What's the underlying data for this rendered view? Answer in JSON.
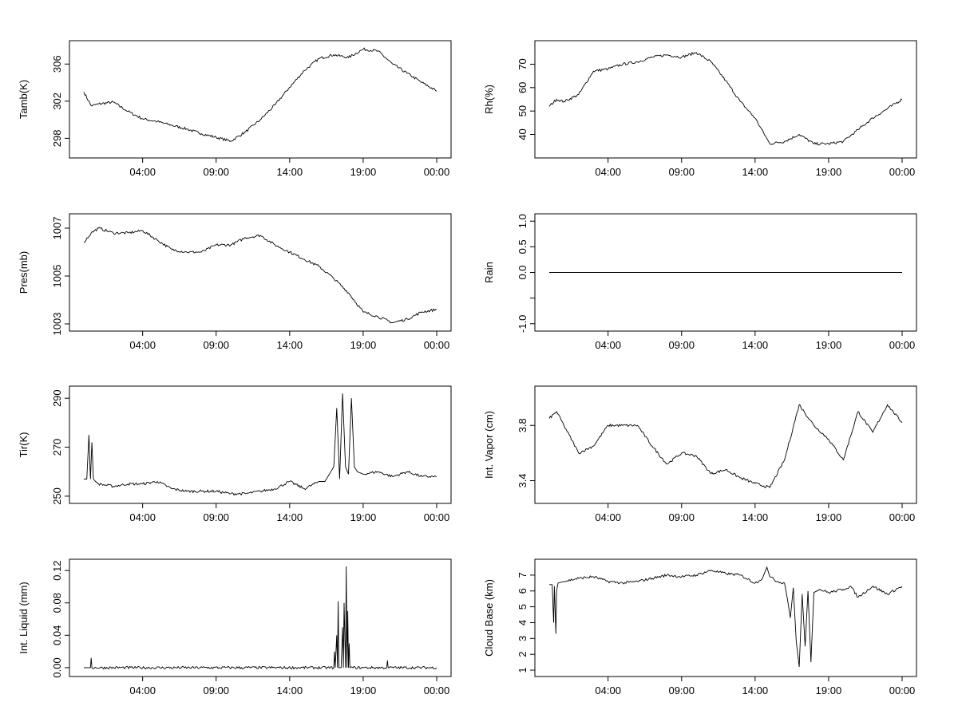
{
  "chart_data": [
    {
      "type": "line",
      "ylabel": "Tamb(K)",
      "xlim": [
        0,
        24
      ],
      "ylim": [
        296.4,
        308.0
      ],
      "x_tick_labels": [
        "04:00",
        "09:00",
        "14:00",
        "19:00",
        "00:00"
      ],
      "y_ticks": [
        298,
        302,
        306
      ],
      "series": [
        {
          "x": [
            0,
            0.5,
            1,
            2,
            3,
            4,
            5,
            6,
            7,
            8,
            9,
            10,
            11,
            12,
            13,
            14,
            15,
            16,
            17,
            18,
            19,
            20,
            21,
            22,
            23,
            24
          ],
          "values": [
            303.0,
            301.5,
            301.7,
            301.9,
            300.9,
            300.1,
            299.8,
            299.4,
            299.0,
            298.5,
            298.1,
            297.7,
            298.7,
            300.0,
            301.6,
            303.5,
            305.3,
            306.6,
            307.0,
            306.7,
            307.6,
            307.4,
            306.0,
            305.0,
            304.0,
            303.1
          ]
        }
      ]
    },
    {
      "type": "line",
      "ylabel": "Rh(%)",
      "xlim": [
        0,
        24
      ],
      "ylim": [
        32,
        78
      ],
      "x_tick_labels": [
        "04:00",
        "09:00",
        "14:00",
        "19:00",
        "00:00"
      ],
      "y_ticks": [
        40,
        50,
        60,
        70
      ],
      "series": [
        {
          "x": [
            0,
            0.5,
            1,
            2,
            3,
            4,
            5,
            6,
            7,
            8,
            9,
            10,
            11,
            12,
            13,
            14,
            15,
            16,
            17,
            18,
            19,
            20,
            21,
            22,
            23,
            24
          ],
          "values": [
            52,
            55,
            54,
            57,
            67,
            68,
            70,
            71,
            73,
            74,
            73,
            75,
            71,
            63,
            54,
            47,
            36,
            37,
            40,
            36,
            36,
            37,
            42,
            47,
            51,
            55
          ]
        }
      ]
    },
    {
      "type": "line",
      "ylabel": "Pres(mb)",
      "xlim": [
        0,
        24
      ],
      "ylim": [
        1002.9,
        1007.4
      ],
      "x_tick_labels": [
        "04:00",
        "09:00",
        "14:00",
        "19:00",
        "00:00"
      ],
      "y_ticks": [
        1003,
        1005,
        1007
      ],
      "series": [
        {
          "x": [
            0,
            0.5,
            1,
            2,
            3,
            4,
            5,
            6,
            7,
            8,
            9,
            10,
            11,
            12,
            13,
            14,
            15,
            16,
            17,
            18,
            19,
            20,
            21,
            22,
            23,
            24
          ],
          "values": [
            1006.4,
            1006.8,
            1007.0,
            1006.8,
            1006.8,
            1006.9,
            1006.5,
            1006.1,
            1006.0,
            1006.0,
            1006.3,
            1006.3,
            1006.6,
            1006.7,
            1006.3,
            1006.0,
            1005.7,
            1005.4,
            1004.9,
            1004.3,
            1003.5,
            1003.3,
            1003.05,
            1003.2,
            1003.5,
            1003.6
          ]
        }
      ]
    },
    {
      "type": "line",
      "ylabel": "Rain",
      "xlim": [
        0,
        24
      ],
      "ylim": [
        -1.05,
        1.05
      ],
      "x_tick_labels": [
        "04:00",
        "09:00",
        "14:00",
        "19:00",
        "00:00"
      ],
      "y_ticks": [
        -1.0,
        -0.5,
        0.0,
        0.5,
        1.0
      ],
      "y_tick_labels": [
        "-1.0",
        "",
        "0.0",
        "0.5",
        "1.0"
      ],
      "series": [
        {
          "x": [
            0,
            24
          ],
          "values": [
            0.0,
            0.0
          ]
        }
      ]
    },
    {
      "type": "line",
      "ylabel": "Tir(K)",
      "xlim": [
        0,
        24
      ],
      "ylim": [
        249,
        293
      ],
      "x_tick_labels": [
        "04:00",
        "09:00",
        "14:00",
        "19:00",
        "00:00"
      ],
      "y_ticks": [
        250,
        270,
        290
      ],
      "series": [
        {
          "x": [
            0,
            0.2,
            0.35,
            0.45,
            0.55,
            0.65,
            0.8,
            1,
            2,
            3,
            4,
            5,
            6,
            7,
            8,
            9,
            10,
            11,
            12,
            13,
            14,
            15,
            16,
            16.4,
            16.8,
            17.0,
            17.2,
            17.4,
            17.6,
            17.8,
            18.0,
            18.2,
            18.4,
            18.6,
            19,
            20,
            21,
            22,
            23,
            24
          ],
          "values": [
            257,
            257,
            275,
            257,
            272,
            257,
            256,
            255,
            254,
            255,
            255,
            256,
            253,
            252,
            252,
            252,
            251,
            251,
            252,
            253,
            256,
            253,
            256,
            256,
            260,
            262,
            286,
            257,
            292,
            262,
            259,
            290,
            262,
            260,
            259,
            260,
            258,
            260,
            258,
            258
          ]
        }
      ]
    },
    {
      "type": "line",
      "ylabel": "Int. Vapor (cm)",
      "xlim": [
        0,
        24
      ],
      "ylim": [
        3.27,
        4.05
      ],
      "x_tick_labels": [
        "04:00",
        "09:00",
        "14:00",
        "19:00",
        "00:00"
      ],
      "y_ticks": [
        3.4,
        3.8
      ],
      "series": [
        {
          "x": [
            0,
            0.5,
            1,
            2,
            3,
            4,
            5,
            6,
            7,
            8,
            9,
            10,
            11,
            12,
            13,
            14,
            15,
            16,
            17,
            18,
            19,
            20,
            21,
            22,
            23,
            24
          ],
          "values": [
            3.85,
            3.9,
            3.8,
            3.6,
            3.65,
            3.8,
            3.8,
            3.8,
            3.65,
            3.52,
            3.6,
            3.58,
            3.45,
            3.48,
            3.42,
            3.38,
            3.35,
            3.55,
            3.95,
            3.8,
            3.7,
            3.55,
            3.9,
            3.75,
            3.95,
            3.82
          ]
        }
      ]
    },
    {
      "type": "line",
      "ylabel": "Int. Liquid (mm)",
      "xlim": [
        0,
        24
      ],
      "ylim": [
        -0.005,
        0.128
      ],
      "x_tick_labels": [
        "04:00",
        "09:00",
        "14:00",
        "19:00",
        "00:00"
      ],
      "y_ticks": [
        0.0,
        0.04,
        0.08,
        0.12
      ],
      "y_tick_labels": [
        "0.00",
        "0.04",
        "0.08",
        "0.12"
      ],
      "series": [
        {
          "x": [
            0,
            0.45,
            0.5,
            0.55,
            17.0,
            17.05,
            17.1,
            17.2,
            17.25,
            17.3,
            17.35,
            17.4,
            17.5,
            17.6,
            17.65,
            17.7,
            17.8,
            17.85,
            17.9,
            17.95,
            18.0,
            18.05,
            18.1,
            19.0,
            20.6,
            20.65,
            20.7,
            24
          ],
          "values": [
            0,
            0,
            0.012,
            0,
            0,
            0.02,
            0,
            0.04,
            0,
            0.082,
            0,
            0,
            0,
            0.05,
            0,
            0.08,
            0,
            0.125,
            0,
            0.07,
            0,
            0.03,
            0,
            0,
            0,
            0.009,
            0,
            0
          ]
        }
      ]
    },
    {
      "type": "line",
      "ylabel": "Cloud Base (km)",
      "xlim": [
        0,
        24
      ],
      "ylim": [
        0.9,
        7.7
      ],
      "x_tick_labels": [
        "04:00",
        "09:00",
        "14:00",
        "19:00",
        "00:00"
      ],
      "y_ticks": [
        1,
        2,
        3,
        4,
        5,
        6,
        7
      ],
      "series": [
        {
          "x": [
            0,
            0.2,
            0.3,
            0.35,
            0.45,
            0.5,
            0.6,
            1,
            2,
            3,
            4,
            5,
            6,
            7,
            8,
            9,
            10,
            11,
            12,
            13,
            14,
            14.5,
            14.8,
            15,
            15.5,
            16,
            16.2,
            16.4,
            16.6,
            16.8,
            17.0,
            17.2,
            17.4,
            17.6,
            17.8,
            18.0,
            18.2,
            18.4,
            19,
            20,
            20.5,
            21,
            22,
            23,
            24
          ],
          "values": [
            6.4,
            6.4,
            4.0,
            6.3,
            3.3,
            6.0,
            6.5,
            6.6,
            6.8,
            6.9,
            6.6,
            6.5,
            6.6,
            6.8,
            7.0,
            6.9,
            7.0,
            7.3,
            7.1,
            7.0,
            6.5,
            6.8,
            7.5,
            6.9,
            6.6,
            6.5,
            5.5,
            4.3,
            6.2,
            2.8,
            1.2,
            5.8,
            2.5,
            6.0,
            1.5,
            5.9,
            6.0,
            6.1,
            5.9,
            6.1,
            6.3,
            5.6,
            6.3,
            5.8,
            6.3
          ]
        }
      ]
    }
  ]
}
